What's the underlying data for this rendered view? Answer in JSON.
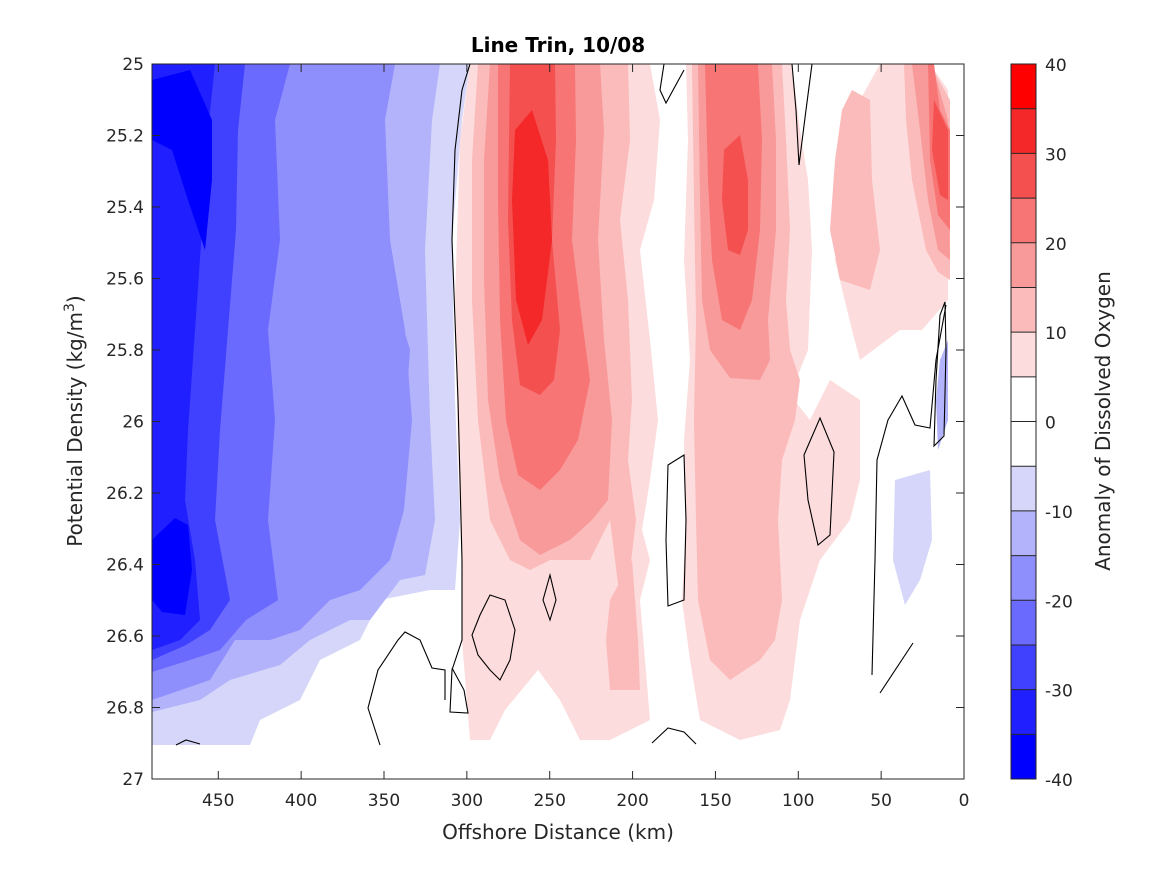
{
  "chart_data": {
    "type": "heatmap",
    "subtype": "filled-contour",
    "title": "Line Trin, 10/08",
    "xlabel": "Offshore Distance (km)",
    "ylabel_main": "Potential Density (kg/m",
    "ylabel_sup": "3",
    "ylabel_close": ")",
    "colorbar_label": "Anomaly of Dissolved Oxygen",
    "xlim": [
      490,
      0
    ],
    "ylim": [
      25,
      27
    ],
    "x_reversed": true,
    "y_reversed": true,
    "x_ticks": [
      450,
      400,
      350,
      300,
      250,
      200,
      150,
      100,
      50,
      0
    ],
    "x_tick_labels": [
      "450",
      "400",
      "350",
      "300",
      "250",
      "200",
      "150",
      "100",
      "50",
      "0"
    ],
    "y_ticks": [
      25,
      25.2,
      25.4,
      25.6,
      25.8,
      26,
      26.2,
      26.4,
      26.6,
      26.8,
      27
    ],
    "y_tick_labels": [
      "25",
      "25.2",
      "25.4",
      "25.6",
      "25.8",
      "26",
      "26.2",
      "26.4",
      "26.6",
      "26.8",
      "27"
    ],
    "colorbar": {
      "range": [
        -40,
        40
      ],
      "levels": [
        -40,
        -35,
        -30,
        -25,
        -20,
        -15,
        -10,
        -5,
        5,
        10,
        15,
        20,
        25,
        30,
        35,
        40
      ],
      "tick_values": [
        40,
        30,
        20,
        10,
        0,
        -10,
        -20,
        -30,
        -40
      ],
      "tick_labels": [
        "40",
        "30",
        "20",
        "10",
        "0",
        "-10",
        "-20",
        "-30",
        "-40"
      ],
      "band_colors": [
        "#0000ff",
        "#1f1fff",
        "#4040ff",
        "#6a6aff",
        "#8e8efc",
        "#b3b3fb",
        "#d6d6fa",
        "#ffffff",
        "#ffffff",
        "#fcdcdc",
        "#fbbbbb",
        "#f99a9a",
        "#f77575",
        "#f55050",
        "#f42828",
        "#ff0000"
      ]
    },
    "grid": false,
    "data_coverage": {
      "x_range": [
        490,
        0
      ],
      "y_range": [
        25,
        26.9
      ]
    },
    "anomaly_regions": [
      {
        "name": "offshore-low",
        "x_range": [
          490,
          310
        ],
        "core_x": 470,
        "core_y": [
          25.2,
          26.5
        ],
        "min_value": -40
      },
      {
        "name": "mid-high-west",
        "x_range": [
          310,
          180
        ],
        "core_x": 262,
        "core_y": [
          25.3,
          25.8
        ],
        "max_value": 35
      },
      {
        "name": "mid-high-east",
        "x_range": [
          180,
          80
        ],
        "core_x": 140,
        "core_y": [
          25.3,
          25.5
        ],
        "max_value": 30
      },
      {
        "name": "nearshore-high",
        "x_range": [
          30,
          8
        ],
        "core_x": 12,
        "core_y": [
          25.2,
          25.4
        ],
        "max_value": 25
      }
    ]
  }
}
